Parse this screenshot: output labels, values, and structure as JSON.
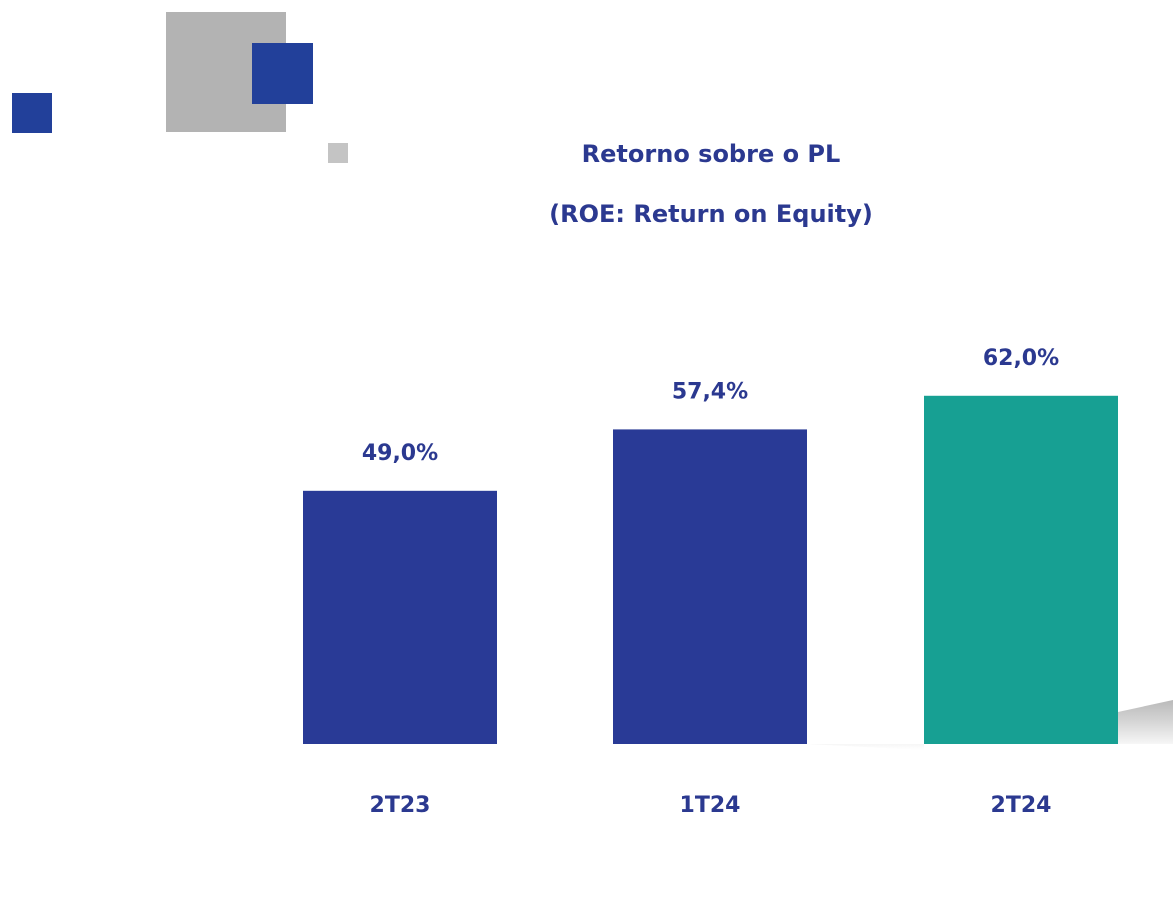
{
  "chart_data": {
    "type": "bar",
    "title": "Retorno sobre o PL",
    "subtitle": "(ROE: Return on Equity)",
    "categories": [
      "2T23",
      "1T24",
      "2T24"
    ],
    "values": [
      49.0,
      57.4,
      62.0
    ],
    "value_labels": [
      "49,0%",
      "57,4%",
      "62,0%"
    ],
    "colors": [
      "#293a96",
      "#293a96",
      "#17a093"
    ]
  }
}
